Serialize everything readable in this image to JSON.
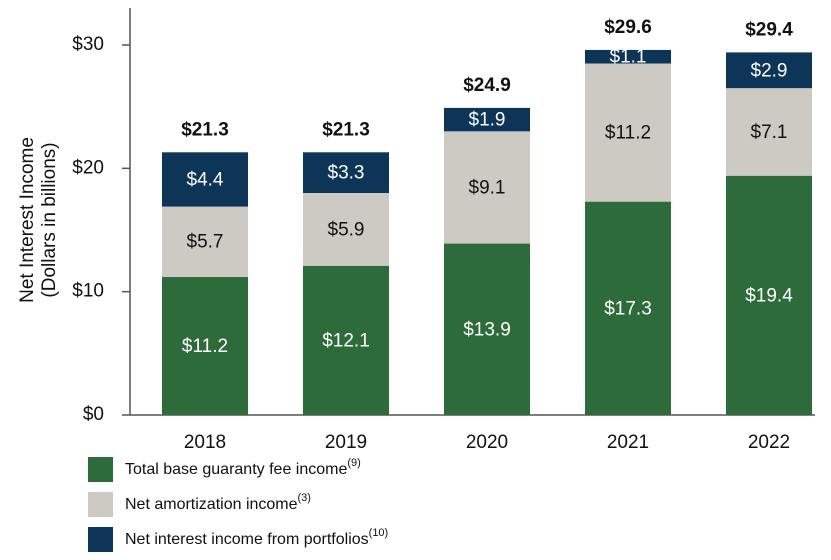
{
  "chart_data": {
    "type": "stacked_bar",
    "y_label": [
      "Net Interest Income",
      "(Dollars in billions)"
    ],
    "categories": [
      "2018",
      "2019",
      "2020",
      "2021",
      "2022"
    ],
    "series": [
      {
        "name": "Total base guaranty fee income",
        "footnote": "(9)",
        "color": "#2e6b3a",
        "label_color": "#ffffff",
        "values": [
          11.2,
          12.1,
          13.9,
          17.3,
          19.4
        ],
        "value_labels": [
          "$11.2",
          "$12.1",
          "$13.9",
          "$17.3",
          "$19.4"
        ]
      },
      {
        "name": "Net amortization income",
        "footnote": "(3)",
        "color": "#cdc9c3",
        "label_color": "#111111",
        "values": [
          5.7,
          5.9,
          9.1,
          11.2,
          7.1
        ],
        "value_labels": [
          "$5.7",
          "$5.9",
          "$9.1",
          "$11.2",
          "$7.1"
        ]
      },
      {
        "name": "Net interest income from portfolios",
        "footnote": "(10)",
        "color": "#0d3557",
        "label_color": "#ffffff",
        "values": [
          4.4,
          3.3,
          1.9,
          1.1,
          2.9
        ],
        "value_labels": [
          "$4.4",
          "$3.3",
          "$1.9",
          "$1.1",
          "$2.9"
        ]
      }
    ],
    "totals": [
      21.3,
      21.3,
      24.9,
      29.6,
      29.4
    ],
    "total_labels": [
      "$21.3",
      "$21.3",
      "$24.9",
      "$29.6",
      "$29.4"
    ],
    "ylim": [
      0,
      33
    ],
    "yticks": [
      {
        "value": 0,
        "label": "$0"
      },
      {
        "value": 10,
        "label": "$10"
      },
      {
        "value": 20,
        "label": "$20"
      },
      {
        "value": 30,
        "label": "$30"
      }
    ],
    "grid": false
  }
}
